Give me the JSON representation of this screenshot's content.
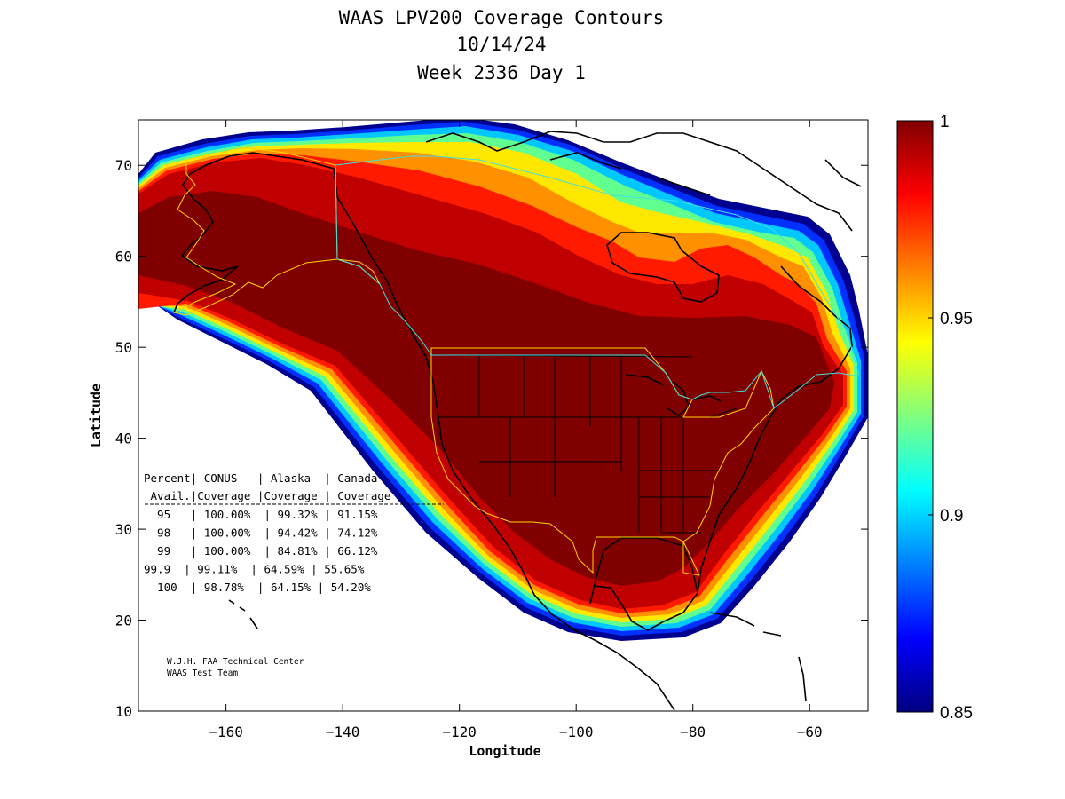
{
  "title": [
    "WAAS LPV200 Coverage Contours",
    "10/14/24",
    "Week 2336 Day 1"
  ],
  "axes": {
    "xlabel": "Longitude",
    "ylabel": "Latitude",
    "xlim": [
      -175,
      -50
    ],
    "ylim": [
      10,
      75
    ],
    "xticks": [
      -160,
      -140,
      -120,
      -100,
      -80,
      -60
    ],
    "yticks": [
      10,
      20,
      30,
      40,
      50,
      60,
      70
    ]
  },
  "colorbar": {
    "range": [
      0.85,
      1
    ],
    "ticks": [
      "1",
      "0.95",
      "0.9",
      "0.85"
    ],
    "tick_values": [
      1,
      0.95,
      0.9,
      0.85
    ],
    "colormap": "jet"
  },
  "coverage_table": {
    "header1": [
      "Percent",
      "CONUS",
      "Alaska",
      "Canada"
    ],
    "header2": [
      "Avail.",
      "Coverage",
      "Coverage",
      "Coverage"
    ],
    "rows": [
      [
        "95",
        "100.00%",
        "99.32%",
        "91.15%"
      ],
      [
        "98",
        "100.00%",
        "94.42%",
        "74.12%"
      ],
      [
        "99",
        "100.00%",
        "84.81%",
        "66.12%"
      ],
      [
        "99.9",
        "99.11%",
        "64.59%",
        "55.65%"
      ],
      [
        "100",
        "98.78%",
        "64.15%",
        "54.20%"
      ]
    ]
  },
  "credit": [
    "W.J.H. FAA Technical Center",
    "WAAS Test Team"
  ],
  "colors": {
    "darkred": "#800000",
    "red": "#ff0000",
    "orange": "#ff8000",
    "yellow": "#ffff00",
    "cyan": "#00ffff",
    "blue": "#0000ff",
    "navy": "#000080",
    "boundary_yellow": "#ffd400",
    "boundary_cyan": "#40e0e0"
  }
}
